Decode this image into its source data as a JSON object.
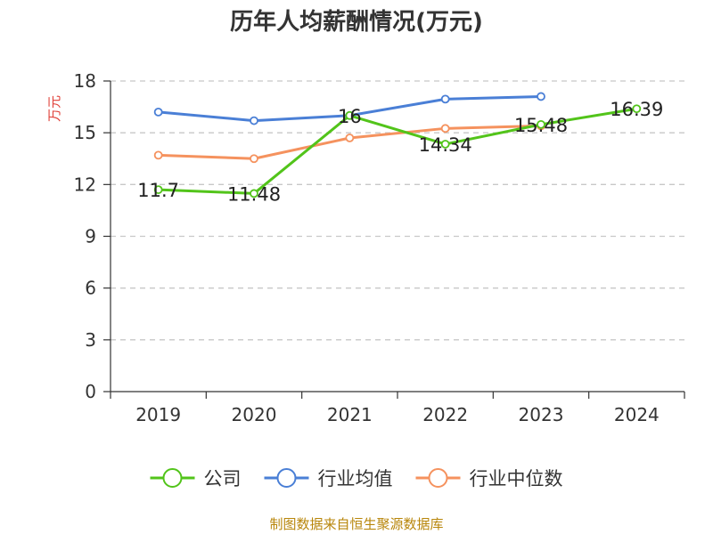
{
  "chart_data": {
    "type": "line",
    "title": "历年人均薪酬情况(万元)",
    "ylabel": "万元",
    "xlabel": "",
    "ylim": [
      0,
      18
    ],
    "yticks": [
      0,
      3,
      6,
      9,
      12,
      15,
      18
    ],
    "categories": [
      "2019",
      "2020",
      "2021",
      "2022",
      "2023",
      "2024"
    ],
    "grid": true,
    "legend_position": "bottom",
    "series": [
      {
        "name": "公司",
        "color": "#52c41a",
        "values": [
          11.7,
          11.48,
          16,
          14.34,
          15.48,
          16.39
        ],
        "labels": [
          "11.7",
          "11.48",
          "16",
          "14.34",
          "15.48",
          "16.39"
        ]
      },
      {
        "name": "行业均值",
        "color": "#4a7fd6",
        "values": [
          16.2,
          15.7,
          16.0,
          16.95,
          17.1,
          null
        ]
      },
      {
        "name": "行业中位数",
        "color": "#f5925e",
        "values": [
          13.7,
          13.5,
          14.7,
          15.25,
          15.4,
          null
        ]
      }
    ]
  },
  "source": "制图数据来自恒生聚源数据库"
}
